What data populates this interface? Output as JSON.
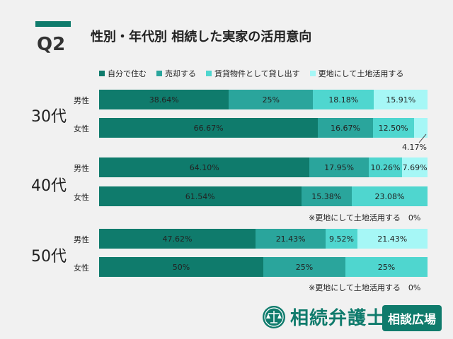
{
  "header": {
    "q_label": "Q2",
    "title": "性別・年代別 相続した実家の活用意向"
  },
  "colors": {
    "self": "#0f7b6c",
    "sell": "#2aa59c",
    "rent": "#4fd6cf",
    "vacant": "#a6f7f6",
    "brand": "#0f7b6c"
  },
  "chart_data": {
    "type": "bar",
    "orientation": "horizontal-stacked-100",
    "legend": [
      "自分で住む",
      "売却する",
      "賃貸物件として貸し出す",
      "更地にして土地活用する"
    ],
    "groups": [
      {
        "age": "30代",
        "rows": [
          {
            "sex": "男性",
            "values": [
              38.64,
              25,
              18.18,
              15.91
            ],
            "labels": [
              "38.64%",
              "25%",
              "18.18%",
              "15.91%"
            ]
          },
          {
            "sex": "女性",
            "values": [
              66.67,
              16.67,
              12.5,
              4.17
            ],
            "labels": [
              "66.67%",
              "16.67%",
              "12.50%",
              "4.17%"
            ]
          }
        ]
      },
      {
        "age": "40代",
        "rows": [
          {
            "sex": "男性",
            "values": [
              64.1,
              17.95,
              10.26,
              7.69
            ],
            "labels": [
              "64.10%",
              "17.95%",
              "10.26%",
              "7.69%"
            ]
          },
          {
            "sex": "女性",
            "values": [
              61.54,
              15.38,
              23.08,
              0
            ],
            "labels": [
              "61.54%",
              "15.38%",
              "23.08%",
              ""
            ]
          }
        ],
        "note": "※更地にして土地活用する　0%"
      },
      {
        "age": "50代",
        "rows": [
          {
            "sex": "男性",
            "values": [
              47.62,
              21.43,
              9.52,
              21.43
            ],
            "labels": [
              "47.62%",
              "21.43%",
              "9.52%",
              "21.43%"
            ]
          },
          {
            "sex": "女性",
            "values": [
              50,
              25,
              25,
              0
            ],
            "labels": [
              "50%",
              "25%",
              "25%",
              ""
            ]
          }
        ],
        "note": "※更地にして土地活用する　0%"
      }
    ]
  },
  "footer": {
    "logo_text": "相続弁護士",
    "badge": "相談広場"
  }
}
